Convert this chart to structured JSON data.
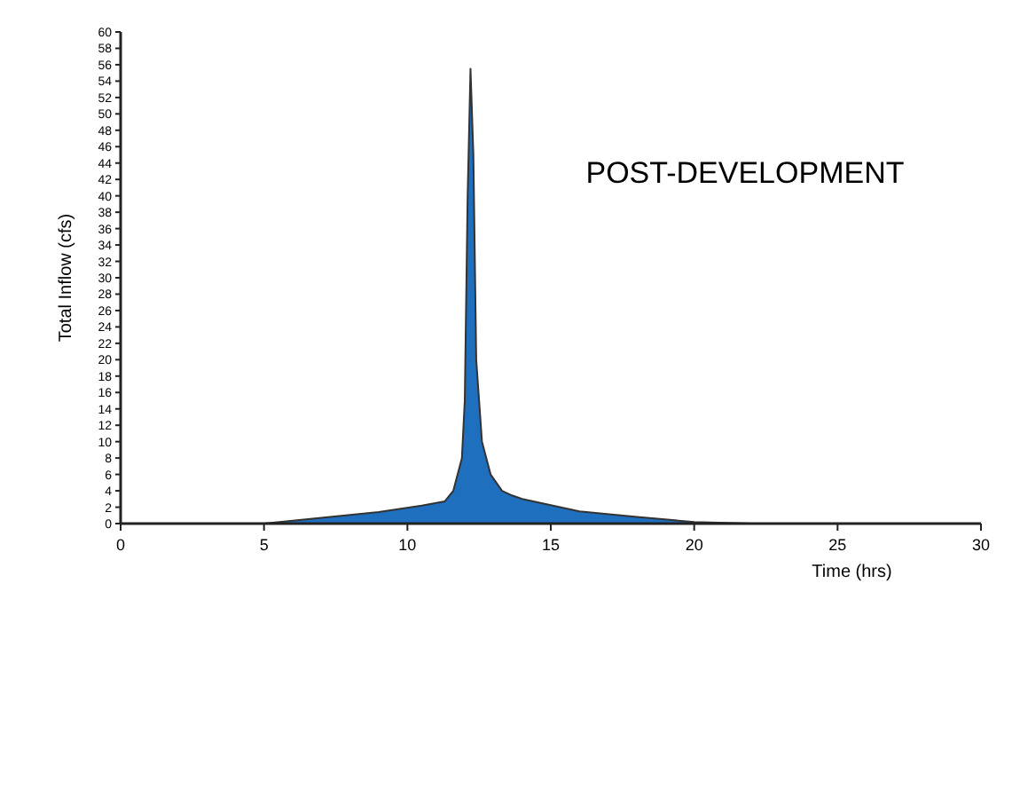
{
  "chart_data": {
    "type": "area",
    "xlabel": "Time (hrs)",
    "ylabel": "Total Inflow (cfs)",
    "annotations": [
      "POST-DEVELOPMENT"
    ],
    "x": [
      0,
      5,
      7,
      9,
      10.5,
      11.3,
      11.6,
      11.9,
      12.0,
      12.1,
      12.2,
      12.3,
      12.4,
      12.6,
      12.9,
      13.3,
      13.6,
      14,
      16,
      18,
      20,
      22,
      30
    ],
    "series": [
      {
        "color": "#1f6fbf",
        "values": [
          0,
          0,
          0.7,
          1.4,
          2.2,
          2.7,
          4,
          8,
          15,
          40,
          55.5,
          45,
          20,
          10,
          6,
          4,
          3.5,
          3,
          1.5,
          0.8,
          0.2,
          0,
          0
        ]
      }
    ],
    "xlim": [
      0,
      30
    ],
    "xticks": [
      0,
      5,
      10,
      15,
      20,
      25,
      30
    ],
    "ylim": [
      0,
      60
    ],
    "yticks": [
      0,
      2,
      4,
      6,
      8,
      10,
      12,
      14,
      16,
      18,
      20,
      22,
      24,
      26,
      28,
      30,
      32,
      34,
      36,
      38,
      40,
      42,
      44,
      46,
      48,
      50,
      52,
      54,
      56,
      58,
      60
    ],
    "grid": false
  }
}
